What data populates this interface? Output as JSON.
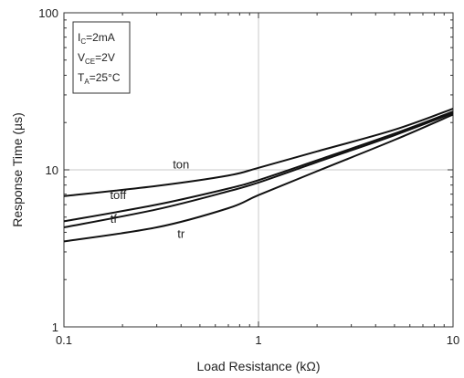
{
  "chart_data": {
    "type": "line",
    "x_scale": "log",
    "y_scale": "log",
    "xlim": [
      0.1,
      10
    ],
    "ylim": [
      1,
      100
    ],
    "xlabel": "Load Resistance (kΩ)",
    "ylabel": "Response Time (µs)",
    "x_ticks": [
      "0.1",
      "1",
      "10"
    ],
    "y_ticks": [
      "1",
      "10",
      "100"
    ],
    "grid": true,
    "conditions": [
      {
        "symbol": "I",
        "subscript": "C",
        "rest": "=2mA"
      },
      {
        "symbol": "V",
        "subscript": "CE",
        "rest": "=2V"
      },
      {
        "symbol": "T",
        "subscript": "A",
        "rest": "=25°C"
      }
    ],
    "series": [
      {
        "name": "ton",
        "x": [
          0.1,
          0.3,
          0.7,
          1,
          2,
          5,
          10
        ],
        "y": [
          6.8,
          7.9,
          9.2,
          10.3,
          13.1,
          18.0,
          24.5
        ]
      },
      {
        "name": "toff",
        "x": [
          0.1,
          0.3,
          0.7,
          1,
          2,
          5,
          10
        ],
        "y": [
          4.7,
          6.0,
          7.6,
          8.6,
          11.5,
          17.0,
          23.5
        ]
      },
      {
        "name": "tf",
        "x": [
          0.1,
          0.3,
          0.7,
          1,
          2,
          5,
          10
        ],
        "y": [
          4.3,
          5.6,
          7.3,
          8.3,
          11.2,
          16.6,
          23.0
        ]
      },
      {
        "name": "tr",
        "x": [
          0.1,
          0.3,
          0.7,
          1,
          2,
          5,
          10
        ],
        "y": [
          3.5,
          4.3,
          5.7,
          6.9,
          9.8,
          15.5,
          22.5
        ]
      }
    ],
    "labels": [
      {
        "text": "ton",
        "x": 0.4,
        "y": 10.2
      },
      {
        "text": "toff",
        "x": 0.19,
        "y": 6.5
      },
      {
        "text": "tf",
        "x": 0.18,
        "y": 4.6
      },
      {
        "text": "tr",
        "x": 0.4,
        "y": 3.7
      }
    ]
  }
}
